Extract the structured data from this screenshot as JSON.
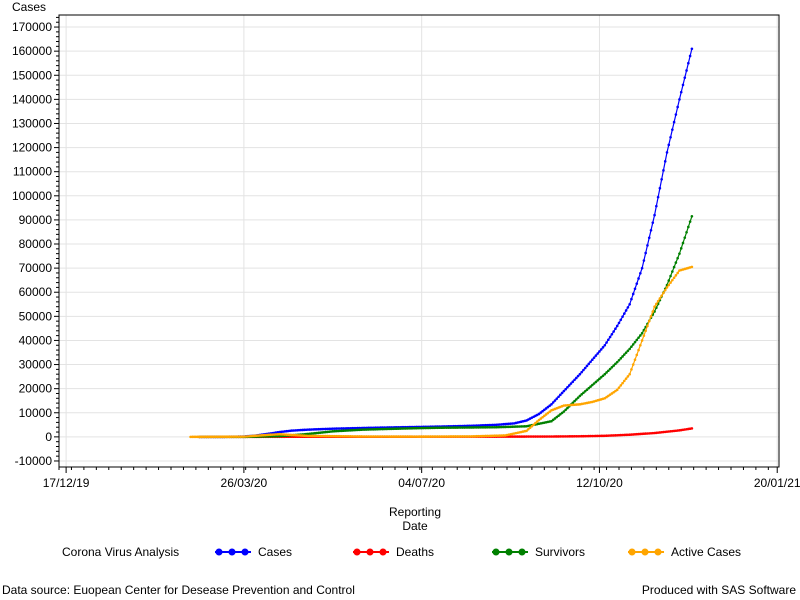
{
  "chart_data": {
    "type": "line",
    "ylabel": "Cases",
    "xlabel_lines": [
      "Reporting",
      "Date"
    ],
    "ylim": [
      -12500,
      175000
    ],
    "yticks": [
      -10000,
      0,
      10000,
      20000,
      30000,
      40000,
      50000,
      60000,
      70000,
      80000,
      90000,
      100000,
      110000,
      120000,
      130000,
      140000,
      150000,
      160000,
      170000
    ],
    "xlim": [
      "2019-12-13",
      "2021-01-21"
    ],
    "xtick_labels": [
      {
        "date": "2019-12-17",
        "label": "17/12/19"
      },
      {
        "date": "2020-03-26",
        "label": "26/03/20"
      },
      {
        "date": "2020-07-04",
        "label": "04/07/20"
      },
      {
        "date": "2020-10-12",
        "label": "12/10/20"
      },
      {
        "date": "2021-01-20",
        "label": "20/01/21"
      }
    ],
    "grid": true,
    "legend_title": "Corona Virus Analysis",
    "legend_position": "bottom",
    "series": [
      {
        "name": "Cases",
        "color": "#0000ff",
        "points": [
          [
            "2020-03-01",
            0
          ],
          [
            "2020-03-15",
            20
          ],
          [
            "2020-03-26",
            150
          ],
          [
            "2020-04-01",
            500
          ],
          [
            "2020-04-08",
            1200
          ],
          [
            "2020-04-15",
            2000
          ],
          [
            "2020-04-22",
            2600
          ],
          [
            "2020-05-01",
            3000
          ],
          [
            "2020-05-15",
            3400
          ],
          [
            "2020-06-01",
            3700
          ],
          [
            "2020-06-15",
            3900
          ],
          [
            "2020-07-01",
            4100
          ],
          [
            "2020-07-15",
            4300
          ],
          [
            "2020-08-01",
            4600
          ],
          [
            "2020-08-15",
            5000
          ],
          [
            "2020-08-25",
            5600
          ],
          [
            "2020-09-01",
            6800
          ],
          [
            "2020-09-08",
            9500
          ],
          [
            "2020-09-15",
            13500
          ],
          [
            "2020-09-22",
            19000
          ],
          [
            "2020-10-01",
            26000
          ],
          [
            "2020-10-08",
            32000
          ],
          [
            "2020-10-15",
            38000
          ],
          [
            "2020-10-22",
            46000
          ],
          [
            "2020-10-29",
            55000
          ],
          [
            "2020-11-05",
            70000
          ],
          [
            "2020-11-12",
            92000
          ],
          [
            "2020-11-19",
            118000
          ],
          [
            "2020-11-26",
            140000
          ],
          [
            "2020-12-03",
            161000
          ]
        ]
      },
      {
        "name": "Deaths",
        "color": "#ff0000",
        "points": [
          [
            "2020-03-01",
            0
          ],
          [
            "2020-03-26",
            5
          ],
          [
            "2020-04-15",
            40
          ],
          [
            "2020-05-15",
            60
          ],
          [
            "2020-06-15",
            70
          ],
          [
            "2020-07-15",
            80
          ],
          [
            "2020-08-15",
            95
          ],
          [
            "2020-09-15",
            150
          ],
          [
            "2020-10-01",
            250
          ],
          [
            "2020-10-15",
            450
          ],
          [
            "2020-10-29",
            900
          ],
          [
            "2020-11-12",
            1600
          ],
          [
            "2020-11-26",
            2700
          ],
          [
            "2020-12-03",
            3500
          ]
        ]
      },
      {
        "name": "Survivors",
        "color": "#008000",
        "points": [
          [
            "2020-03-01",
            0
          ],
          [
            "2020-03-26",
            0
          ],
          [
            "2020-04-15",
            300
          ],
          [
            "2020-05-01",
            1200
          ],
          [
            "2020-05-15",
            2300
          ],
          [
            "2020-06-01",
            3000
          ],
          [
            "2020-06-15",
            3300
          ],
          [
            "2020-07-01",
            3600
          ],
          [
            "2020-07-15",
            3800
          ],
          [
            "2020-08-01",
            3900
          ],
          [
            "2020-08-15",
            4000
          ],
          [
            "2020-09-01",
            4400
          ],
          [
            "2020-09-15",
            6500
          ],
          [
            "2020-09-22",
            10500
          ],
          [
            "2020-10-01",
            17000
          ],
          [
            "2020-10-08",
            21500
          ],
          [
            "2020-10-15",
            26000
          ],
          [
            "2020-10-22",
            31000
          ],
          [
            "2020-10-29",
            36500
          ],
          [
            "2020-11-05",
            43000
          ],
          [
            "2020-11-12",
            52000
          ],
          [
            "2020-11-19",
            63000
          ],
          [
            "2020-11-26",
            76000
          ],
          [
            "2020-12-03",
            91500
          ]
        ]
      },
      {
        "name": "Active Cases",
        "color": "#ffa500",
        "points": [
          [
            "2020-02-25",
            0
          ],
          [
            "2020-03-26",
            100
          ],
          [
            "2020-04-08",
            800
          ],
          [
            "2020-04-15",
            1100
          ],
          [
            "2020-05-01",
            400
          ],
          [
            "2020-05-15",
            300
          ],
          [
            "2020-06-01",
            150
          ],
          [
            "2020-07-01",
            100
          ],
          [
            "2020-08-01",
            200
          ],
          [
            "2020-08-20",
            600
          ],
          [
            "2020-09-01",
            2500
          ],
          [
            "2020-09-08",
            7000
          ],
          [
            "2020-09-15",
            11000
          ],
          [
            "2020-09-22",
            13000
          ],
          [
            "2020-10-01",
            13500
          ],
          [
            "2020-10-08",
            14500
          ],
          [
            "2020-10-15",
            16000
          ],
          [
            "2020-10-22",
            19500
          ],
          [
            "2020-10-29",
            26000
          ],
          [
            "2020-11-05",
            40000
          ],
          [
            "2020-11-12",
            54000
          ],
          [
            "2020-11-19",
            62000
          ],
          [
            "2020-11-26",
            69000
          ],
          [
            "2020-12-03",
            70500
          ]
        ]
      }
    ]
  },
  "footer": {
    "source": "Data source: Euopean Center for Desease Prevention and Control",
    "produced": "Produced with SAS Software"
  }
}
